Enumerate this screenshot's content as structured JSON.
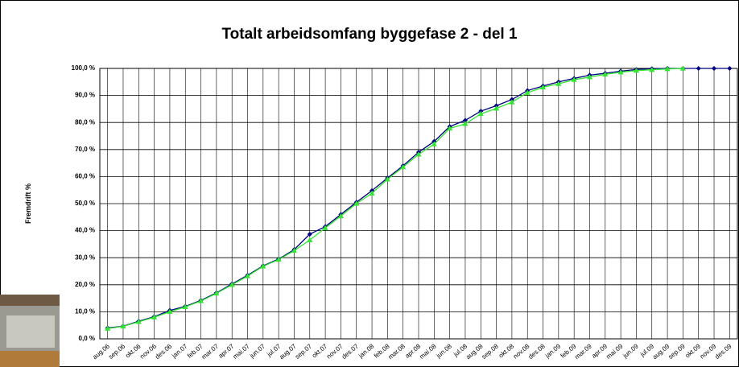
{
  "chart_data": {
    "type": "line",
    "title": "Totalt arbeidsomfang byggefase 2 - del 1",
    "y_label": "Fremdrift %",
    "categories": [
      "aug.06",
      "sep.06",
      "okt.06",
      "nov.06",
      "des.06",
      "jan.07",
      "feb.07",
      "mar.07",
      "apr.07",
      "mai.07",
      "jun.07",
      "jul.07",
      "aug.07",
      "sep.07",
      "okt.07",
      "nov.07",
      "des.07",
      "jan.08",
      "feb.08",
      "mar.08",
      "apr.08",
      "mai.08",
      "jun.08",
      "jul.08",
      "aug.08",
      "sep.08",
      "okt.08",
      "nov.08",
      "des.08",
      "jan.09",
      "feb.09",
      "mar.09",
      "apr.09",
      "mai.09",
      "jun.09",
      "jul.09",
      "aug.09",
      "sep.09",
      "okt.09",
      "nov.09",
      "des.09"
    ],
    "series": [
      {
        "color": "#000080",
        "marker": "diamond",
        "values": [
          4.0,
          4.7,
          6.5,
          8.2,
          10.5,
          12.0,
          14.2,
          17.0,
          20.3,
          23.5,
          27.0,
          29.5,
          33.0,
          38.7,
          41.5,
          46.0,
          50.5,
          54.8,
          59.5,
          64.0,
          69.0,
          73.0,
          78.5,
          80.8,
          84.2,
          86.2,
          88.5,
          91.8,
          93.5,
          95.0,
          96.3,
          97.5,
          98.2,
          99.0,
          99.6,
          99.9,
          100,
          100,
          100,
          100,
          100
        ]
      },
      {
        "color": "#33e633",
        "marker": "triangle",
        "values": [
          3.8,
          4.6,
          6.3,
          8.0,
          10.0,
          11.8,
          14.0,
          16.8,
          20.0,
          23.2,
          26.8,
          29.3,
          32.6,
          36.5,
          41.0,
          45.4,
          50.0,
          53.8,
          59.0,
          63.5,
          68.2,
          72.0,
          77.8,
          79.5,
          83.2,
          85.2,
          87.5,
          91.0,
          93.0,
          94.3,
          95.8,
          96.8,
          97.8,
          98.6,
          99.2,
          99.5,
          99.8,
          100,
          null,
          null,
          null
        ]
      }
    ],
    "ylim": [
      0,
      100
    ],
    "yticks": [
      {
        "value": 0,
        "label": "0,0 %"
      },
      {
        "value": 10,
        "label": "10,0 %"
      },
      {
        "value": 20,
        "label": "20,0 %"
      },
      {
        "value": 30,
        "label": "30,0 %"
      },
      {
        "value": 40,
        "label": "40,0 %"
      },
      {
        "value": 50,
        "label": "50,0 %"
      },
      {
        "value": 60,
        "label": "60,0 %"
      },
      {
        "value": 70,
        "label": "70,0 %"
      },
      {
        "value": 80,
        "label": "80,0 %"
      },
      {
        "value": 90,
        "label": "90,0 %"
      },
      {
        "value": 100,
        "label": "100,0 %"
      }
    ],
    "grid": true
  }
}
